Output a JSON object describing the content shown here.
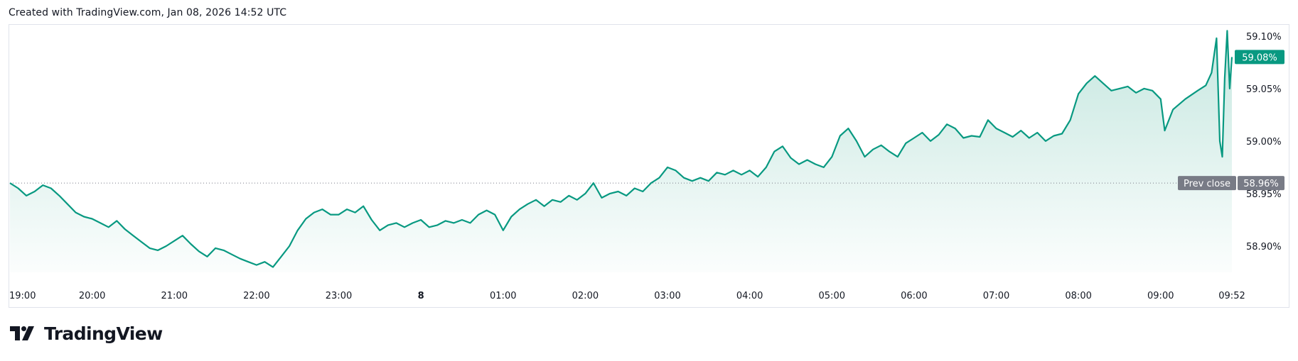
{
  "header": {
    "created_text": "Created with TradingView.com, Jan 08, 2026 14:52 UTC"
  },
  "footer": {
    "brand": "TradingView"
  },
  "colors": {
    "line": "#089981",
    "fill_top": "#b2dfd5",
    "fill_bottom": "#ffffff",
    "prev_close_tag": "#787b86",
    "current_tag": "#089981"
  },
  "chart_data": {
    "type": "area",
    "y_unit": "%",
    "ylim": [
      58.875,
      59.11
    ],
    "y_ticks": [
      {
        "value": 59.1,
        "label": "59.10%"
      },
      {
        "value": 59.05,
        "label": "59.05%"
      },
      {
        "value": 59.0,
        "label": "59.00%"
      },
      {
        "value": 58.95,
        "label": "58.95%"
      },
      {
        "value": 58.9,
        "label": "58.90%"
      }
    ],
    "x_ticks": [
      {
        "hour": 19.0,
        "label": "19:00",
        "bold": false
      },
      {
        "hour": 20.0,
        "label": "20:00",
        "bold": false
      },
      {
        "hour": 21.0,
        "label": "21:00",
        "bold": false
      },
      {
        "hour": 22.0,
        "label": "22:00",
        "bold": false
      },
      {
        "hour": 23.0,
        "label": "23:00",
        "bold": false
      },
      {
        "hour": 24.0,
        "label": "8",
        "bold": true
      },
      {
        "hour": 25.0,
        "label": "01:00",
        "bold": false
      },
      {
        "hour": 26.0,
        "label": "02:00",
        "bold": false
      },
      {
        "hour": 27.0,
        "label": "03:00",
        "bold": false
      },
      {
        "hour": 28.0,
        "label": "04:00",
        "bold": false
      },
      {
        "hour": 29.0,
        "label": "05:00",
        "bold": false
      },
      {
        "hour": 30.0,
        "label": "06:00",
        "bold": false
      },
      {
        "hour": 31.0,
        "label": "07:00",
        "bold": false
      },
      {
        "hour": 32.0,
        "label": "08:00",
        "bold": false
      },
      {
        "hour": 33.0,
        "label": "09:00",
        "bold": false
      },
      {
        "hour": 33.867,
        "label": "09:52",
        "bold": false
      }
    ],
    "xlim": [
      19.0,
      33.867
    ],
    "prev_close": {
      "value": 58.96,
      "label": "Prev close",
      "value_label": "58.96%"
    },
    "current": {
      "value": 59.08,
      "label": "59.08%"
    },
    "series": [
      {
        "points": [
          [
            19.0,
            58.96
          ],
          [
            19.1,
            58.955
          ],
          [
            19.2,
            58.948
          ],
          [
            19.3,
            58.952
          ],
          [
            19.4,
            58.958
          ],
          [
            19.5,
            58.955
          ],
          [
            19.6,
            58.948
          ],
          [
            19.7,
            58.94
          ],
          [
            19.8,
            58.932
          ],
          [
            19.9,
            58.928
          ],
          [
            20.0,
            58.926
          ],
          [
            20.1,
            58.922
          ],
          [
            20.2,
            58.918
          ],
          [
            20.3,
            58.924
          ],
          [
            20.4,
            58.916
          ],
          [
            20.5,
            58.91
          ],
          [
            20.6,
            58.904
          ],
          [
            20.7,
            58.898
          ],
          [
            20.8,
            58.896
          ],
          [
            20.9,
            58.9
          ],
          [
            21.0,
            58.905
          ],
          [
            21.1,
            58.91
          ],
          [
            21.2,
            58.902
          ],
          [
            21.3,
            58.895
          ],
          [
            21.4,
            58.89
          ],
          [
            21.5,
            58.898
          ],
          [
            21.6,
            58.896
          ],
          [
            21.7,
            58.892
          ],
          [
            21.8,
            58.888
          ],
          [
            21.9,
            58.885
          ],
          [
            22.0,
            58.882
          ],
          [
            22.1,
            58.885
          ],
          [
            22.2,
            58.88
          ],
          [
            22.3,
            58.89
          ],
          [
            22.4,
            58.9
          ],
          [
            22.5,
            58.915
          ],
          [
            22.6,
            58.926
          ],
          [
            22.7,
            58.932
          ],
          [
            22.8,
            58.935
          ],
          [
            22.9,
            58.93
          ],
          [
            23.0,
            58.93
          ],
          [
            23.1,
            58.935
          ],
          [
            23.2,
            58.932
          ],
          [
            23.3,
            58.938
          ],
          [
            23.4,
            58.925
          ],
          [
            23.5,
            58.915
          ],
          [
            23.6,
            58.92
          ],
          [
            23.7,
            58.922
          ],
          [
            23.8,
            58.918
          ],
          [
            23.9,
            58.922
          ],
          [
            24.0,
            58.925
          ],
          [
            24.1,
            58.918
          ],
          [
            24.2,
            58.92
          ],
          [
            24.3,
            58.924
          ],
          [
            24.4,
            58.922
          ],
          [
            24.5,
            58.925
          ],
          [
            24.6,
            58.922
          ],
          [
            24.7,
            58.93
          ],
          [
            24.8,
            58.934
          ],
          [
            24.9,
            58.93
          ],
          [
            25.0,
            58.915
          ],
          [
            25.1,
            58.928
          ],
          [
            25.2,
            58.935
          ],
          [
            25.3,
            58.94
          ],
          [
            25.4,
            58.944
          ],
          [
            25.5,
            58.938
          ],
          [
            25.6,
            58.944
          ],
          [
            25.7,
            58.942
          ],
          [
            25.8,
            58.948
          ],
          [
            25.9,
            58.944
          ],
          [
            26.0,
            58.95
          ],
          [
            26.1,
            58.96
          ],
          [
            26.2,
            58.946
          ],
          [
            26.3,
            58.95
          ],
          [
            26.4,
            58.952
          ],
          [
            26.5,
            58.948
          ],
          [
            26.6,
            58.955
          ],
          [
            26.7,
            58.952
          ],
          [
            26.8,
            58.96
          ],
          [
            26.9,
            58.965
          ],
          [
            27.0,
            58.975
          ],
          [
            27.1,
            58.972
          ],
          [
            27.2,
            58.965
          ],
          [
            27.3,
            58.962
          ],
          [
            27.4,
            58.965
          ],
          [
            27.5,
            58.962
          ],
          [
            27.6,
            58.97
          ],
          [
            27.7,
            58.968
          ],
          [
            27.8,
            58.972
          ],
          [
            27.9,
            58.968
          ],
          [
            28.0,
            58.972
          ],
          [
            28.1,
            58.966
          ],
          [
            28.2,
            58.975
          ],
          [
            28.3,
            58.99
          ],
          [
            28.4,
            58.995
          ],
          [
            28.5,
            58.984
          ],
          [
            28.6,
            58.978
          ],
          [
            28.7,
            58.982
          ],
          [
            28.8,
            58.978
          ],
          [
            28.9,
            58.975
          ],
          [
            29.0,
            58.985
          ],
          [
            29.1,
            59.005
          ],
          [
            29.2,
            59.012
          ],
          [
            29.3,
            59.0
          ],
          [
            29.4,
            58.985
          ],
          [
            29.5,
            58.992
          ],
          [
            29.6,
            58.996
          ],
          [
            29.7,
            58.99
          ],
          [
            29.8,
            58.985
          ],
          [
            29.9,
            58.998
          ],
          [
            30.0,
            59.003
          ],
          [
            30.1,
            59.008
          ],
          [
            30.2,
            59.0
          ],
          [
            30.3,
            59.006
          ],
          [
            30.4,
            59.016
          ],
          [
            30.5,
            59.012
          ],
          [
            30.6,
            59.003
          ],
          [
            30.7,
            59.005
          ],
          [
            30.8,
            59.004
          ],
          [
            30.9,
            59.02
          ],
          [
            31.0,
            59.012
          ],
          [
            31.1,
            59.008
          ],
          [
            31.2,
            59.004
          ],
          [
            31.3,
            59.01
          ],
          [
            31.4,
            59.003
          ],
          [
            31.5,
            59.008
          ],
          [
            31.6,
            59.0
          ],
          [
            31.7,
            59.005
          ],
          [
            31.8,
            59.007
          ],
          [
            31.9,
            59.02
          ],
          [
            32.0,
            59.045
          ],
          [
            32.1,
            59.055
          ],
          [
            32.2,
            59.062
          ],
          [
            32.3,
            59.055
          ],
          [
            32.4,
            59.048
          ],
          [
            32.5,
            59.05
          ],
          [
            32.6,
            59.052
          ],
          [
            32.7,
            59.046
          ],
          [
            32.8,
            59.05
          ],
          [
            32.9,
            59.048
          ],
          [
            33.0,
            59.04
          ],
          [
            33.05,
            59.01
          ],
          [
            33.15,
            59.03
          ],
          [
            33.3,
            59.04
          ],
          [
            33.45,
            59.048
          ],
          [
            33.55,
            59.053
          ],
          [
            33.62,
            59.065
          ],
          [
            33.68,
            59.098
          ],
          [
            33.72,
            59.0
          ],
          [
            33.75,
            58.985
          ],
          [
            33.78,
            59.06
          ],
          [
            33.81,
            59.105
          ],
          [
            33.84,
            59.05
          ],
          [
            33.867,
            59.08
          ]
        ]
      }
    ]
  }
}
